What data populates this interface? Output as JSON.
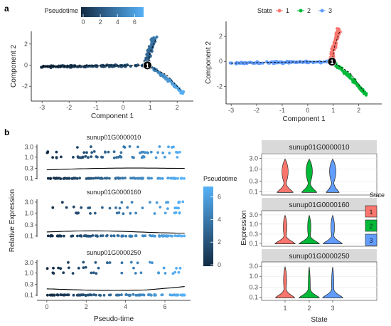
{
  "panels": {
    "a": "a",
    "b": "b"
  },
  "colors": {
    "dark": "#132B43",
    "light": "#56B1F7",
    "state1": "#F8766D",
    "state2": "#00BA38",
    "state3": "#619CFF"
  },
  "chart_data": [
    {
      "type": "scatter",
      "id": "traj-pseudotime",
      "xlabel": "Component 1",
      "ylabel": "Component 2",
      "xlim": [
        -3.4,
        2.6
      ],
      "ylim": [
        -3.4,
        3.2
      ],
      "xticks": [
        -3,
        -2,
        -1,
        0,
        1,
        2
      ],
      "yticks": [
        -2,
        0,
        2
      ],
      "branch_point": {
        "x": 0.9,
        "y": -0.02,
        "label": "1"
      },
      "legend": {
        "title": "Pseudotime",
        "ticks": [
          0,
          2,
          4,
          6
        ],
        "range": [
          0,
          6.8
        ],
        "position": "top"
      }
    },
    {
      "type": "scatter",
      "id": "traj-state",
      "xlabel": "Component 1",
      "ylabel": "Component 2",
      "xlim": [
        -3.2,
        2.9
      ],
      "ylim": [
        -3.4,
        3.2
      ],
      "xticks": [
        -3,
        -2,
        -1,
        0,
        1,
        2
      ],
      "yticks": [
        -2,
        0,
        2
      ],
      "branch_point": {
        "x": 0.95,
        "y": -0.02,
        "label": "1"
      },
      "legend": {
        "title": "State",
        "entries": [
          "1",
          "2",
          "3"
        ],
        "position": "top"
      }
    },
    {
      "type": "scatter",
      "id": "expression-vs-pseudotime",
      "xlabel": "Pseudo-time",
      "ylabel": "Relative Expression",
      "xlim": [
        -0.5,
        7.3
      ],
      "xticks": [
        0,
        2,
        4,
        6
      ],
      "yticks": [
        "0.1",
        "0.3",
        "1.0",
        "3.0"
      ],
      "genes": [
        "sunup01G0000010",
        "sunup01G0000160",
        "sunup01G0000250"
      ],
      "legend": {
        "title": "Pseudotime",
        "ticks": [
          0,
          2,
          4,
          6
        ],
        "range": [
          0,
          6.8
        ],
        "position": "right"
      }
    },
    {
      "type": "violin",
      "id": "expression-by-state",
      "xlabel": "State",
      "ylabel": "Expression",
      "categories": [
        "1",
        "2",
        "3"
      ],
      "yticks": [
        "0.1",
        "0.3",
        "1.0",
        "3.0"
      ],
      "genes": [
        "sunup01G0000010",
        "sunup01G0000160",
        "sunup01G0000250"
      ],
      "legend": {
        "title": "State",
        "entries": [
          "1",
          "2",
          "3"
        ],
        "position": "right"
      }
    }
  ]
}
